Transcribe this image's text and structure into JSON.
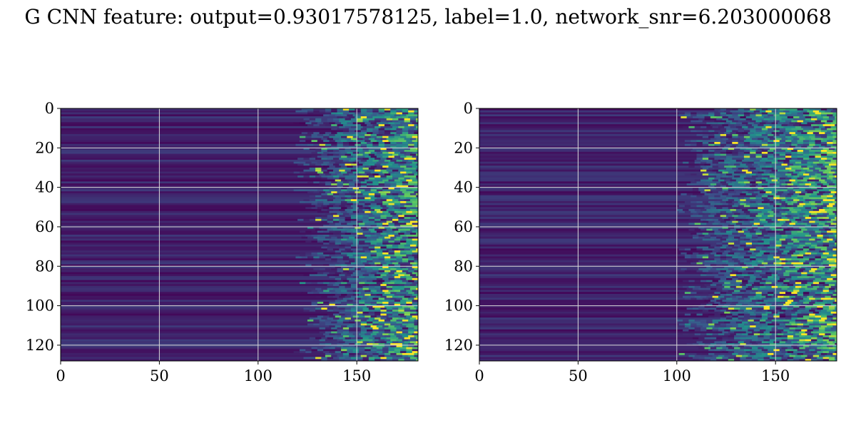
{
  "title": "G CNN feature: output=0.93017578125, label=1.0, network_snr=6.203000068",
  "colors": {
    "cmap": "viridis",
    "low": "#440154",
    "mid": "#21918c",
    "high": "#fde725",
    "grid": "#d9d9d9"
  },
  "chart_data": [
    {
      "type": "heatmap",
      "xlim": [
        0,
        181
      ],
      "ylim": [
        128,
        0
      ],
      "xticks": [
        "0",
        "50",
        "100",
        "150"
      ],
      "yticks": [
        "0",
        "20",
        "40",
        "60",
        "80",
        "100",
        "120"
      ],
      "grid": true,
      "onset_column": 130
    },
    {
      "type": "heatmap",
      "xlim": [
        0,
        181
      ],
      "ylim": [
        128,
        0
      ],
      "xticks": [
        "0",
        "50",
        "100",
        "150"
      ],
      "yticks": [
        "0",
        "20",
        "40",
        "60",
        "80",
        "100",
        "120"
      ],
      "grid": true,
      "onset_column": 112
    }
  ]
}
